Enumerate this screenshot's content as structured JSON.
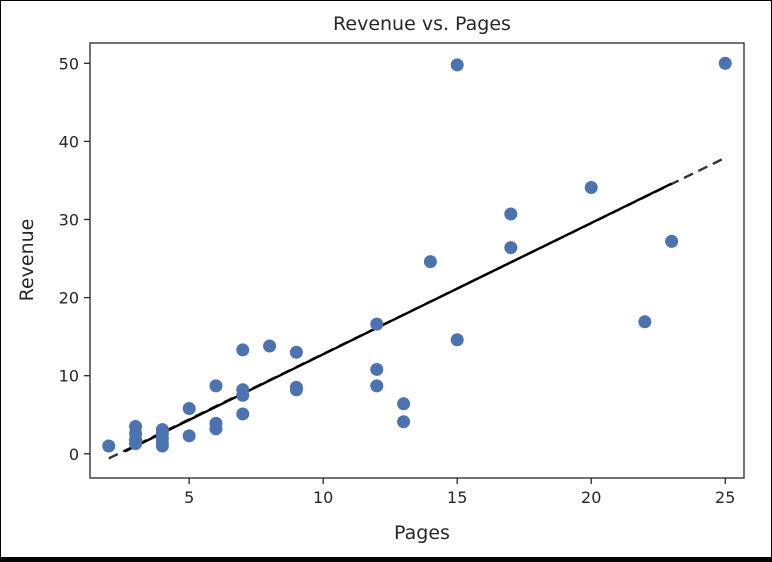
{
  "chart_data": {
    "type": "scatter",
    "title": "Revenue vs. Pages",
    "xlabel": "Pages",
    "ylabel": "Revenue",
    "xlim": [
      1.3,
      25.7
    ],
    "ylim": [
      -3.1,
      52.6
    ],
    "xticks": [
      5,
      10,
      15,
      20,
      25
    ],
    "yticks": [
      0,
      10,
      20,
      30,
      40,
      50
    ],
    "grid": false,
    "point_color": "#4c72b0",
    "fit_line_color": "#000000",
    "fit_line": {
      "solid": [
        [
          2.6,
          0.3
        ],
        [
          23.0,
          34.6
        ]
      ],
      "dashed": [
        [
          2.0,
          -0.6
        ],
        [
          25.0,
          37.9
        ]
      ]
    },
    "points": [
      {
        "x": 2,
        "y": 1.0
      },
      {
        "x": 3,
        "y": 1.3
      },
      {
        "x": 3,
        "y": 1.8
      },
      {
        "x": 3,
        "y": 2.6
      },
      {
        "x": 3,
        "y": 3.5
      },
      {
        "x": 4,
        "y": 1.0
      },
      {
        "x": 4,
        "y": 1.4
      },
      {
        "x": 4,
        "y": 2.0
      },
      {
        "x": 4,
        "y": 2.6
      },
      {
        "x": 4,
        "y": 3.1
      },
      {
        "x": 5,
        "y": 2.3
      },
      {
        "x": 5,
        "y": 5.8
      },
      {
        "x": 6,
        "y": 3.2
      },
      {
        "x": 6,
        "y": 3.9
      },
      {
        "x": 6,
        "y": 8.7
      },
      {
        "x": 7,
        "y": 5.1
      },
      {
        "x": 7,
        "y": 7.5
      },
      {
        "x": 7,
        "y": 8.2
      },
      {
        "x": 7,
        "y": 13.3
      },
      {
        "x": 8,
        "y": 13.8
      },
      {
        "x": 9,
        "y": 8.2
      },
      {
        "x": 9,
        "y": 8.5
      },
      {
        "x": 9,
        "y": 13.0
      },
      {
        "x": 12,
        "y": 8.7
      },
      {
        "x": 12,
        "y": 10.8
      },
      {
        "x": 12,
        "y": 16.6
      },
      {
        "x": 13,
        "y": 4.1
      },
      {
        "x": 13,
        "y": 6.4
      },
      {
        "x": 14,
        "y": 24.6
      },
      {
        "x": 15,
        "y": 14.6
      },
      {
        "x": 15,
        "y": 49.8
      },
      {
        "x": 17,
        "y": 26.4
      },
      {
        "x": 17,
        "y": 30.7
      },
      {
        "x": 20,
        "y": 34.1
      },
      {
        "x": 22,
        "y": 16.9
      },
      {
        "x": 23,
        "y": 27.2
      },
      {
        "x": 25,
        "y": 50.0
      }
    ]
  }
}
